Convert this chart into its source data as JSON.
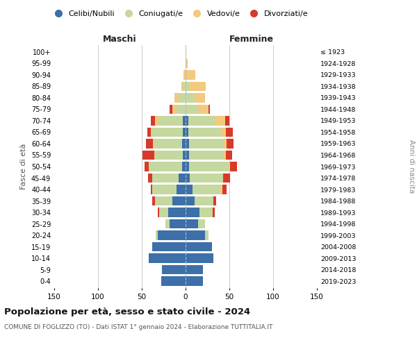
{
  "age_groups": [
    "0-4",
    "5-9",
    "10-14",
    "15-19",
    "20-24",
    "25-29",
    "30-34",
    "35-39",
    "40-44",
    "45-49",
    "50-54",
    "55-59",
    "60-64",
    "65-69",
    "70-74",
    "75-79",
    "80-84",
    "85-89",
    "90-94",
    "95-99",
    "100+"
  ],
  "birth_years": [
    "2019-2023",
    "2014-2018",
    "2009-2013",
    "2004-2008",
    "1999-2003",
    "1994-1998",
    "1989-1993",
    "1984-1988",
    "1979-1983",
    "1974-1978",
    "1969-1973",
    "1964-1968",
    "1959-1963",
    "1954-1958",
    "1949-1953",
    "1944-1948",
    "1939-1943",
    "1934-1938",
    "1929-1933",
    "1924-1928",
    "≤ 1923"
  ],
  "maschi": {
    "celibi": [
      28,
      27,
      42,
      38,
      32,
      18,
      20,
      15,
      10,
      8,
      4,
      3,
      4,
      3,
      3,
      0,
      0,
      0,
      0,
      0,
      0
    ],
    "coniugati": [
      0,
      0,
      0,
      0,
      2,
      5,
      10,
      20,
      28,
      30,
      38,
      32,
      32,
      35,
      28,
      10,
      8,
      3,
      1,
      0,
      0
    ],
    "vedovi": [
      0,
      0,
      0,
      0,
      0,
      0,
      0,
      0,
      0,
      0,
      0,
      1,
      1,
      2,
      4,
      5,
      5,
      2,
      1,
      0,
      0
    ],
    "divorziati": [
      0,
      0,
      0,
      0,
      0,
      0,
      2,
      3,
      2,
      5,
      5,
      13,
      8,
      4,
      5,
      3,
      0,
      0,
      0,
      0,
      0
    ]
  },
  "femmine": {
    "nubili": [
      20,
      20,
      32,
      30,
      22,
      14,
      16,
      10,
      8,
      5,
      4,
      4,
      4,
      3,
      3,
      0,
      0,
      0,
      0,
      0,
      0
    ],
    "coniugate": [
      0,
      0,
      0,
      0,
      4,
      8,
      15,
      22,
      32,
      38,
      45,
      40,
      40,
      38,
      30,
      14,
      10,
      5,
      1,
      0,
      0
    ],
    "vedove": [
      0,
      0,
      0,
      0,
      0,
      0,
      0,
      0,
      2,
      0,
      2,
      2,
      3,
      5,
      12,
      12,
      12,
      18,
      10,
      2,
      1
    ],
    "divorziate": [
      0,
      0,
      0,
      0,
      0,
      0,
      2,
      3,
      5,
      8,
      8,
      7,
      8,
      8,
      5,
      2,
      0,
      0,
      0,
      0,
      0
    ]
  },
  "colors": {
    "celibi": "#3d6fa8",
    "coniugati": "#c5d8a0",
    "vedovi": "#f2c97e",
    "divorziati": "#d63a2a"
  },
  "legend_labels": [
    "Celibi/Nubili",
    "Coniugati/e",
    "Vedovi/e",
    "Divorziati/e"
  ],
  "title": "Popolazione per età, sesso e stato civile - 2024",
  "subtitle": "COMUNE DI FOGLIZZO (TO) - Dati ISTAT 1° gennaio 2024 - Elaborazione TUTTITALIA.IT",
  "ylabel_left": "Fasce di età",
  "ylabel_right": "Anni di nascita",
  "xlabel_left": "Maschi",
  "xlabel_right": "Femmine",
  "xlim": 150,
  "background_color": "#ffffff",
  "grid_color": "#cccccc"
}
